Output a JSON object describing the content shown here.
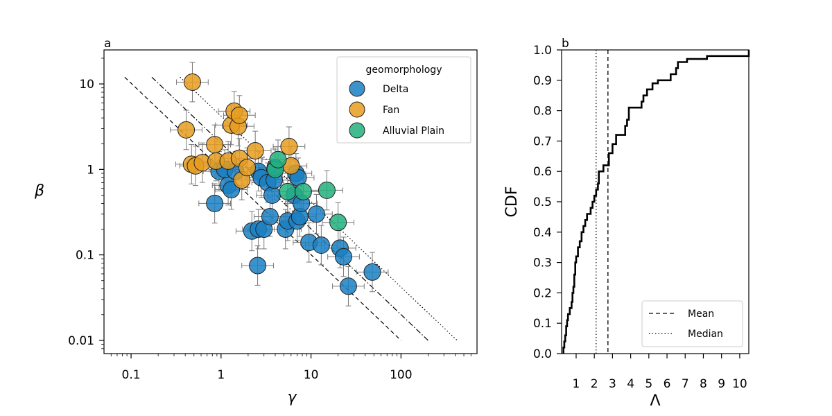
{
  "chart_data": [
    {
      "type": "scatter",
      "panel_label": "a",
      "xlabel": "γ",
      "ylabel": "β",
      "xscale": "log",
      "yscale": "log",
      "xlim": [
        0.05,
        700
      ],
      "ylim": [
        0.007,
        25
      ],
      "x_ticks": [
        0.1,
        1,
        10,
        100
      ],
      "x_tick_labels": [
        "0.1",
        "1",
        "10",
        "100"
      ],
      "y_ticks": [
        0.01,
        0.1,
        1,
        10
      ],
      "y_tick_labels": [
        "0.01",
        "0.1",
        "1",
        "10"
      ],
      "grid": false,
      "legend": {
        "title": "geomorphology",
        "position": "top-right"
      },
      "colors": {
        "Delta": "#1a7fc2",
        "Fan": "#e69c20",
        "Alluvial Plain": "#23b07f"
      },
      "series": [
        {
          "name": "Delta",
          "points": [
            [
              0.85,
              0.4
            ],
            [
              0.95,
              0.95
            ],
            [
              1.1,
              1.0
            ],
            [
              1.2,
              0.65
            ],
            [
              1.3,
              0.58
            ],
            [
              1.45,
              0.95
            ],
            [
              2.2,
              0.19
            ],
            [
              2.55,
              0.075
            ],
            [
              2.6,
              0.2
            ],
            [
              2.6,
              0.95
            ],
            [
              2.8,
              0.8
            ],
            [
              3.0,
              0.2
            ],
            [
              3.3,
              0.7
            ],
            [
              3.5,
              0.28
            ],
            [
              3.7,
              0.5
            ],
            [
              3.9,
              0.75
            ],
            [
              4.0,
              1.05
            ],
            [
              5.2,
              0.2
            ],
            [
              5.5,
              0.25
            ],
            [
              6.5,
              0.5
            ],
            [
              6.8,
              0.9
            ],
            [
              7.0,
              0.25
            ],
            [
              7.2,
              0.8
            ],
            [
              7.5,
              0.28
            ],
            [
              7.8,
              0.4
            ],
            [
              9.5,
              0.14
            ],
            [
              11.5,
              0.3
            ],
            [
              13.0,
              0.13
            ],
            [
              21.0,
              0.12
            ],
            [
              23.0,
              0.095
            ],
            [
              26.0,
              0.043
            ],
            [
              48.0,
              0.063
            ]
          ]
        },
        {
          "name": "Fan",
          "points": [
            [
              0.41,
              2.9
            ],
            [
              0.47,
              1.15
            ],
            [
              0.48,
              10.5
            ],
            [
              0.52,
              1.1
            ],
            [
              0.62,
              1.2
            ],
            [
              0.85,
              1.95
            ],
            [
              0.88,
              1.25
            ],
            [
              1.2,
              1.25
            ],
            [
              1.3,
              3.3
            ],
            [
              1.4,
              4.8
            ],
            [
              1.55,
              3.2
            ],
            [
              1.6,
              4.3
            ],
            [
              1.6,
              1.35
            ],
            [
              1.7,
              0.75
            ],
            [
              1.95,
              1.05
            ],
            [
              2.4,
              1.65
            ],
            [
              5.7,
              1.85
            ],
            [
              6.0,
              1.1
            ]
          ]
        },
        {
          "name": "Alluvial Plain",
          "points": [
            [
              4.0,
              1.0
            ],
            [
              4.3,
              1.3
            ],
            [
              5.5,
              0.55
            ],
            [
              8.2,
              0.55
            ],
            [
              15.0,
              0.57
            ],
            [
              20.0,
              0.24
            ]
          ]
        }
      ],
      "reference_lines": [
        {
          "style": "dashed",
          "from": [
            0.085,
            12
          ],
          "to": [
            100,
            0.01
          ]
        },
        {
          "style": "dashdot",
          "from": [
            0.17,
            12
          ],
          "to": [
            200,
            0.01
          ]
        },
        {
          "style": "dotted",
          "from": [
            0.35,
            12
          ],
          "to": [
            420,
            0.01
          ]
        }
      ]
    },
    {
      "type": "line",
      "panel_label": "b",
      "xlabel": "Λ",
      "ylabel": "CDF",
      "xlim": [
        0.2,
        10.5
      ],
      "ylim": [
        0.0,
        1.0
      ],
      "x_ticks": [
        1,
        2,
        3,
        4,
        5,
        6,
        7,
        8,
        9,
        10
      ],
      "x_tick_labels": [
        "1",
        "2",
        "3",
        "4",
        "5",
        "6",
        "7",
        "8",
        "9",
        "10"
      ],
      "y_ticks": [
        0.0,
        0.1,
        0.2,
        0.3,
        0.4,
        0.5,
        0.6,
        0.7,
        0.8,
        0.9,
        1.0
      ],
      "y_tick_labels": [
        "0.0",
        "0.1",
        "0.2",
        "0.3",
        "0.4",
        "0.5",
        "0.6",
        "0.7",
        "0.8",
        "0.9",
        "1.0"
      ],
      "grid": false,
      "legend": {
        "position": "bottom-right"
      },
      "series": [
        {
          "name": "CDF",
          "points": [
            [
              0.3,
              0.0
            ],
            [
              0.3,
              0.02
            ],
            [
              0.35,
              0.02
            ],
            [
              0.35,
              0.04
            ],
            [
              0.4,
              0.04
            ],
            [
              0.4,
              0.06
            ],
            [
              0.45,
              0.06
            ],
            [
              0.45,
              0.09
            ],
            [
              0.5,
              0.09
            ],
            [
              0.5,
              0.11
            ],
            [
              0.55,
              0.11
            ],
            [
              0.55,
              0.13
            ],
            [
              0.65,
              0.13
            ],
            [
              0.65,
              0.15
            ],
            [
              0.75,
              0.15
            ],
            [
              0.75,
              0.17
            ],
            [
              0.8,
              0.17
            ],
            [
              0.8,
              0.2
            ],
            [
              0.85,
              0.2
            ],
            [
              0.85,
              0.22
            ],
            [
              0.9,
              0.22
            ],
            [
              0.9,
              0.26
            ],
            [
              0.95,
              0.26
            ],
            [
              0.95,
              0.3
            ],
            [
              1.0,
              0.3
            ],
            [
              1.0,
              0.32
            ],
            [
              1.1,
              0.32
            ],
            [
              1.1,
              0.35
            ],
            [
              1.2,
              0.35
            ],
            [
              1.2,
              0.37
            ],
            [
              1.3,
              0.37
            ],
            [
              1.3,
              0.4
            ],
            [
              1.4,
              0.4
            ],
            [
              1.4,
              0.42
            ],
            [
              1.5,
              0.42
            ],
            [
              1.5,
              0.44
            ],
            [
              1.6,
              0.44
            ],
            [
              1.6,
              0.46
            ],
            [
              1.8,
              0.46
            ],
            [
              1.8,
              0.48
            ],
            [
              1.9,
              0.48
            ],
            [
              1.9,
              0.5
            ],
            [
              2.0,
              0.5
            ],
            [
              2.0,
              0.52
            ],
            [
              2.1,
              0.52
            ],
            [
              2.1,
              0.54
            ],
            [
              2.2,
              0.54
            ],
            [
              2.2,
              0.56
            ],
            [
              2.25,
              0.56
            ],
            [
              2.25,
              0.6
            ],
            [
              2.5,
              0.6
            ],
            [
              2.5,
              0.62
            ],
            [
              2.8,
              0.62
            ],
            [
              2.8,
              0.66
            ],
            [
              3.0,
              0.66
            ],
            [
              3.0,
              0.69
            ],
            [
              3.2,
              0.69
            ],
            [
              3.2,
              0.72
            ],
            [
              3.7,
              0.72
            ],
            [
              3.7,
              0.75
            ],
            [
              3.8,
              0.75
            ],
            [
              3.8,
              0.77
            ],
            [
              3.9,
              0.77
            ],
            [
              3.9,
              0.81
            ],
            [
              4.6,
              0.81
            ],
            [
              4.6,
              0.83
            ],
            [
              4.7,
              0.83
            ],
            [
              4.7,
              0.85
            ],
            [
              4.9,
              0.85
            ],
            [
              4.9,
              0.87
            ],
            [
              5.2,
              0.87
            ],
            [
              5.2,
              0.89
            ],
            [
              5.5,
              0.89
            ],
            [
              5.5,
              0.9
            ],
            [
              6.2,
              0.9
            ],
            [
              6.2,
              0.92
            ],
            [
              6.5,
              0.92
            ],
            [
              6.5,
              0.94
            ],
            [
              6.6,
              0.94
            ],
            [
              6.6,
              0.96
            ],
            [
              7.1,
              0.96
            ],
            [
              7.1,
              0.97
            ],
            [
              8.2,
              0.97
            ],
            [
              8.2,
              0.98
            ],
            [
              10.5,
              0.98
            ],
            [
              10.5,
              1.0
            ]
          ]
        },
        {
          "name": "Mean",
          "style": "dashed",
          "x": 2.75
        },
        {
          "name": "Median",
          "style": "dotted",
          "x": 2.1
        }
      ]
    }
  ]
}
